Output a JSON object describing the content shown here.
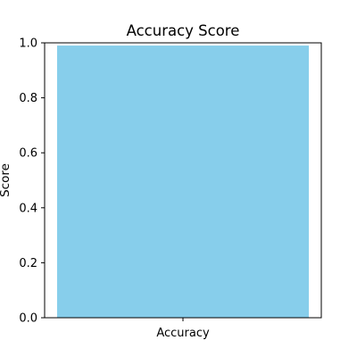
{
  "chart_data": {
    "type": "bar",
    "title": "Accuracy Score",
    "xlabel": "",
    "ylabel": "Score",
    "categories": [
      "Accuracy"
    ],
    "values": [
      0.99
    ],
    "ylim": [
      0,
      1
    ],
    "yticks": [
      "0.0",
      "0.2",
      "0.4",
      "0.6",
      "0.8",
      "1.0"
    ],
    "bar_color": "#87ceeb",
    "grid": false,
    "legend": "none"
  }
}
